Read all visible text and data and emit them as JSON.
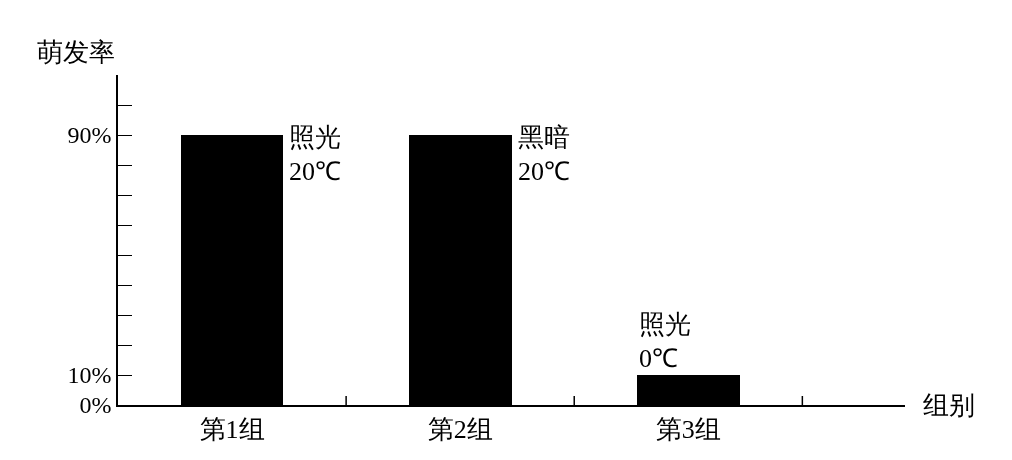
{
  "chart_data": {
    "type": "bar",
    "xlabel": "组别",
    "ylabel": "萌发率",
    "categories": [
      "第1组",
      "第2组",
      "第3组"
    ],
    "values": [
      90,
      90,
      10
    ],
    "color": "#000000",
    "ylim": [
      0,
      110
    ],
    "yticks": [
      {
        "value": 0,
        "label": "0%"
      },
      {
        "value": 10,
        "label": "10%"
      },
      {
        "value": 20,
        "label": null
      },
      {
        "value": 30,
        "label": null
      },
      {
        "value": 40,
        "label": null
      },
      {
        "value": 50,
        "label": null
      },
      {
        "value": 60,
        "label": null
      },
      {
        "value": 70,
        "label": null
      },
      {
        "value": 80,
        "label": null
      },
      {
        "value": 90,
        "label": "90%"
      },
      {
        "value": 100,
        "label": null
      }
    ],
    "annotations": [
      {
        "text": "照光\n20℃",
        "x": "第1组",
        "y": 90
      },
      {
        "text": "黑暗\n20℃",
        "x": "第2组",
        "y": 90
      },
      {
        "text": "照光\n0℃",
        "x": "第3组",
        "y": 10
      }
    ],
    "data_labels": false
  }
}
